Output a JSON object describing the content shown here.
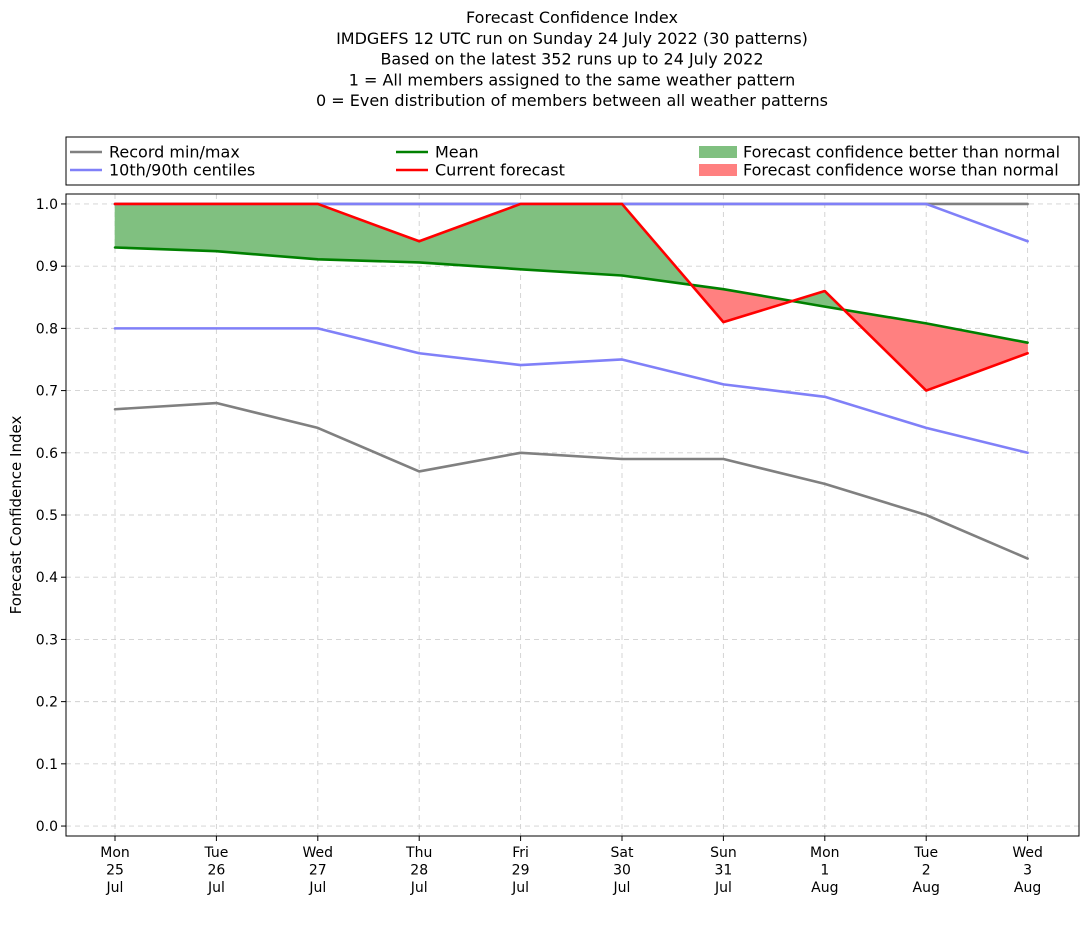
{
  "chart_data": {
    "type": "line",
    "title_lines": [
      "Forecast Confidence Index",
      "IMDGEFS 12 UTC run on Sunday 24 July 2022 (30 patterns)",
      "Based on the latest 352 runs up to 24 July 2022",
      "1 = All members assigned to the same weather pattern",
      "0 = Even distribution of members between all weather patterns"
    ],
    "ylabel": "Forecast Confidence Index",
    "ylim": [
      0.0,
      1.0
    ],
    "yticks": [
      "0.0",
      "0.1",
      "0.2",
      "0.3",
      "0.4",
      "0.5",
      "0.6",
      "0.7",
      "0.8",
      "0.9",
      "1.0"
    ],
    "ytick_values": [
      0.0,
      0.1,
      0.2,
      0.3,
      0.4,
      0.5,
      0.6,
      0.7,
      0.8,
      0.9,
      1.0
    ],
    "categories": [
      [
        "Mon",
        "25",
        "Jul"
      ],
      [
        "Tue",
        "26",
        "Jul"
      ],
      [
        "Wed",
        "27",
        "Jul"
      ],
      [
        "Thu",
        "28",
        "Jul"
      ],
      [
        "Fri",
        "29",
        "Jul"
      ],
      [
        "Sat",
        "30",
        "Jul"
      ],
      [
        "Sun",
        "31",
        "Jul"
      ],
      [
        "Mon",
        "1",
        "Aug"
      ],
      [
        "Tue",
        "2",
        "Aug"
      ],
      [
        "Wed",
        "3",
        "Aug"
      ]
    ],
    "grid": true,
    "series": [
      {
        "name": "Record min",
        "color": "#808080",
        "values": [
          0.67,
          0.68,
          0.64,
          0.57,
          0.6,
          0.59,
          0.59,
          0.55,
          0.5,
          0.43
        ]
      },
      {
        "name": "Record max",
        "color": "#808080",
        "values": [
          1.0,
          1.0,
          1.0,
          1.0,
          1.0,
          1.0,
          1.0,
          1.0,
          1.0,
          1.0
        ]
      },
      {
        "name": "10th centile",
        "color": "#8080f8",
        "values": [
          0.8,
          0.8,
          0.8,
          0.76,
          0.741,
          0.75,
          0.71,
          0.69,
          0.64,
          0.6
        ]
      },
      {
        "name": "90th centile",
        "color": "#8080f8",
        "values": [
          1.0,
          1.0,
          1.0,
          1.0,
          1.0,
          1.0,
          1.0,
          1.0,
          1.0,
          0.94
        ]
      },
      {
        "name": "Mean",
        "color": "#008000",
        "values": [
          0.93,
          0.924,
          0.911,
          0.906,
          0.895,
          0.885,
          0.863,
          0.835,
          0.808,
          0.777
        ]
      },
      {
        "name": "Current forecast",
        "color": "#ff0000",
        "values": [
          1.0,
          1.0,
          1.0,
          0.94,
          1.0,
          1.0,
          0.81,
          0.86,
          0.7,
          0.76
        ]
      }
    ],
    "fills": {
      "better_color": "#80c080",
      "worse_color": "#ff8080"
    },
    "legend": {
      "placement": "top",
      "entries": [
        {
          "label": "Record min/max",
          "kind": "line",
          "color": "#808080"
        },
        {
          "label": "10th/90th centiles",
          "kind": "line",
          "color": "#8080f8"
        },
        {
          "label": "Mean",
          "kind": "line",
          "color": "#008000"
        },
        {
          "label": "Current forecast",
          "kind": "line",
          "color": "#ff0000"
        },
        {
          "label": "Forecast confidence better than normal",
          "kind": "patch",
          "color": "#80c080"
        },
        {
          "label": "Forecast confidence worse than normal",
          "kind": "patch",
          "color": "#ff8080"
        }
      ]
    }
  }
}
